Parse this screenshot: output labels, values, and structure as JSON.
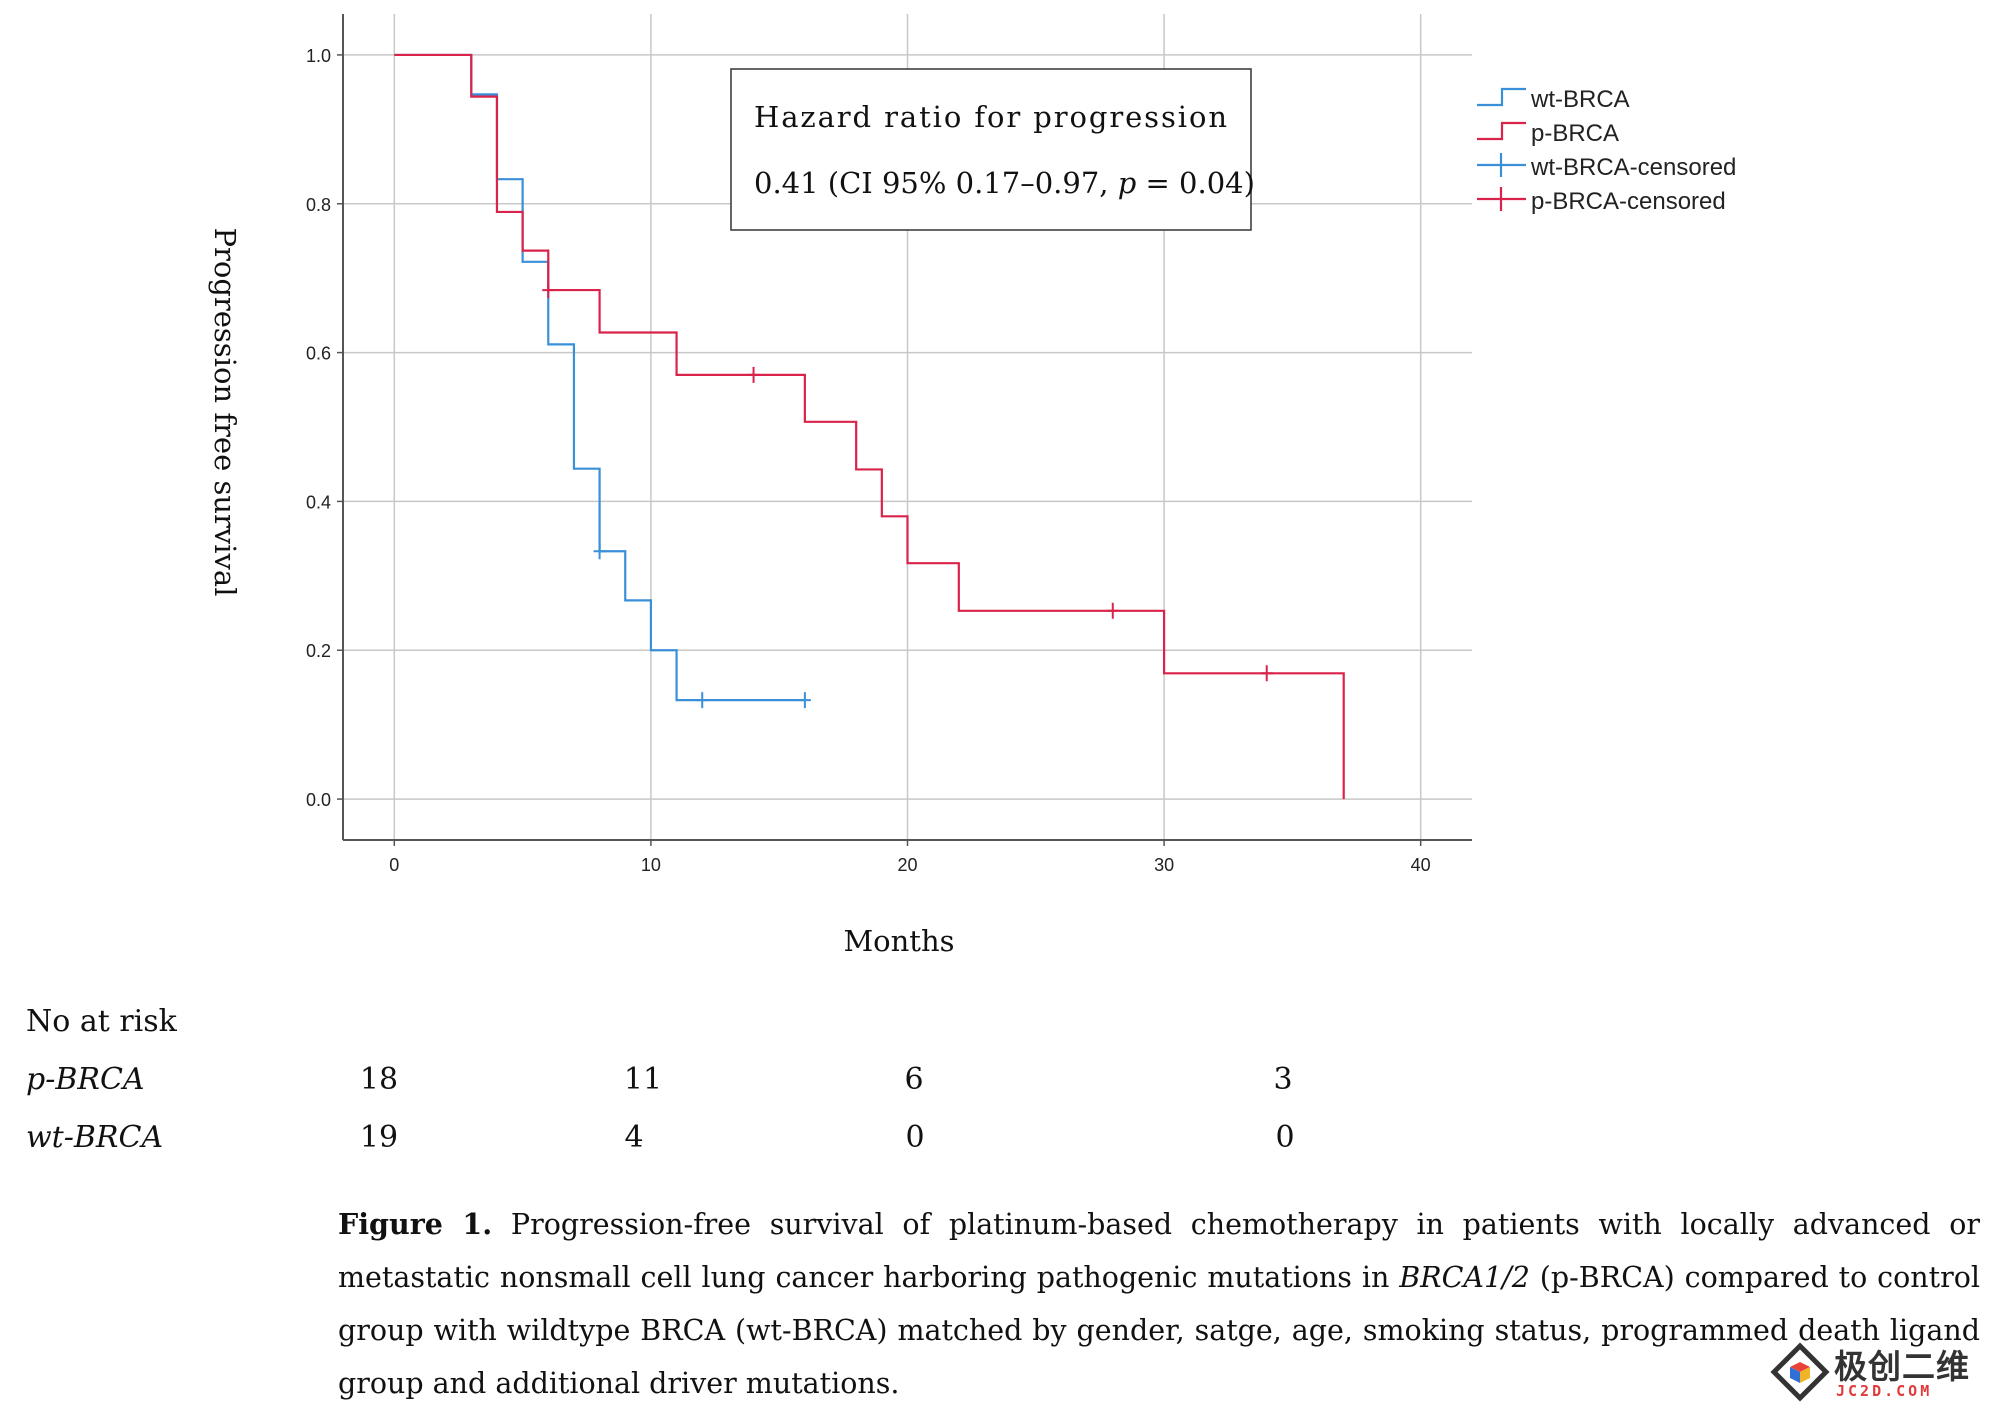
{
  "chart_data": {
    "type": "line",
    "xlabel": "Months",
    "ylabel": "Progression free survival",
    "xlim": [
      -2,
      42
    ],
    "ylim": [
      -0.055,
      1.055
    ],
    "x_ticks": [
      "0",
      "10",
      "20",
      "30",
      "40"
    ],
    "x_tick_values": [
      0,
      10,
      20,
      30,
      40
    ],
    "y_ticks": [
      "0.0",
      "0.2",
      "0.4",
      "0.6",
      "0.8",
      "1.0"
    ],
    "y_tick_values": [
      0.0,
      0.2,
      0.4,
      0.6,
      0.8,
      1.0
    ],
    "grid": true,
    "legend_position": "top-right",
    "series": [
      {
        "name": "wt-BRCA",
        "color": "#3a8fd9",
        "step_points": [
          [
            0,
            1.0
          ],
          [
            3,
            0.947
          ],
          [
            4,
            0.833
          ],
          [
            5,
            0.722
          ],
          [
            6,
            0.611
          ],
          [
            7,
            0.444
          ],
          [
            8,
            0.333
          ],
          [
            9,
            0.267
          ],
          [
            10,
            0.2
          ],
          [
            11,
            0.133
          ],
          [
            16,
            0.133
          ]
        ],
        "censored": [
          [
            8,
            0.333
          ],
          [
            12,
            0.133
          ],
          [
            16,
            0.133
          ]
        ]
      },
      {
        "name": "p-BRCA",
        "color": "#d9234a",
        "step_points": [
          [
            0,
            1.0
          ],
          [
            3,
            0.944
          ],
          [
            4,
            0.789
          ],
          [
            5,
            0.737
          ],
          [
            6,
            0.684
          ],
          [
            8,
            0.627
          ],
          [
            11,
            0.57
          ],
          [
            16,
            0.507
          ],
          [
            18,
            0.443
          ],
          [
            19,
            0.38
          ],
          [
            20,
            0.317
          ],
          [
            22,
            0.253
          ],
          [
            30,
            0.169
          ],
          [
            37,
            0.169
          ],
          [
            37,
            0.0
          ]
        ],
        "censored": [
          [
            6,
            0.684
          ],
          [
            14,
            0.57
          ],
          [
            28,
            0.253
          ],
          [
            34,
            0.169
          ]
        ]
      }
    ],
    "legend": [
      "wt-BRCA",
      "p-BRCA",
      "wt-BRCA-censored",
      "p-BRCA-censored"
    ],
    "annotation": {
      "line1": "Hazard ratio for progression",
      "line2_a": "0.41 (CI 95% 0.17–0.97, ",
      "line2_p": "p",
      "line2_b": " = 0.04)"
    }
  },
  "risk_table": {
    "title": "No at risk",
    "rows": [
      {
        "label": "p-BRCA",
        "values": [
          "18",
          "11",
          "6",
          "3"
        ]
      },
      {
        "label": "wt-BRCA",
        "values": [
          "19",
          "4",
          "0",
          "0"
        ]
      }
    ]
  },
  "caption": {
    "label": "Figure 1.",
    "text_a": " Progression-free survival of platinum-based chemotherapy in patients with locally advanced or metastatic nonsmall cell lung cancer harboring pathogenic mutations in ",
    "gene": "BRCA1/2",
    "text_b": " (p-BRCA) compared to control group with wildtype BRCA (wt-BRCA) matched by gender, satge, age, smoking status, programmed death ligand group and additional driver mutations."
  },
  "watermark": {
    "text": "极创二维",
    "sub": "JC2D.COM"
  }
}
